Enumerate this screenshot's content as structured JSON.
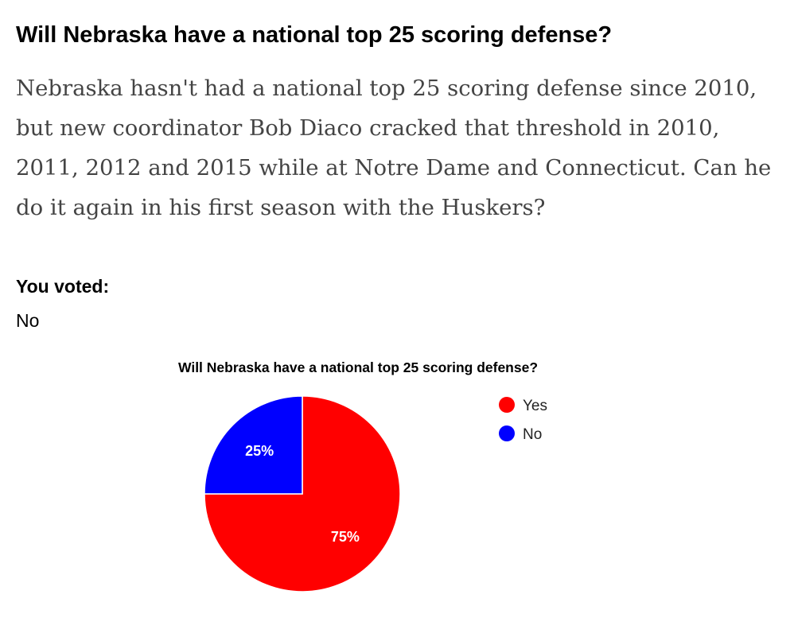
{
  "poll": {
    "question": "Will Nebraska have a national top 25 scoring defense?",
    "description": "Nebraska hasn't had a national top 25 scoring defense since 2010, but new coordinator Bob Diaco cracked that threshold in 2010, 2011, 2012 and 2015 while at Notre Dame and Connecticut. Can he do it again in his first season with the Huskers?",
    "voted_label": "You voted:",
    "voted_value": "No"
  },
  "chart_data": {
    "type": "pie",
    "title": "Will Nebraska have a national top 25 scoring defense?",
    "categories": [
      "Yes",
      "No"
    ],
    "values": [
      75,
      25
    ],
    "labels": [
      "75%",
      "25%"
    ],
    "colors": [
      "#ff0000",
      "#0000ff"
    ],
    "legend_position": "right"
  }
}
